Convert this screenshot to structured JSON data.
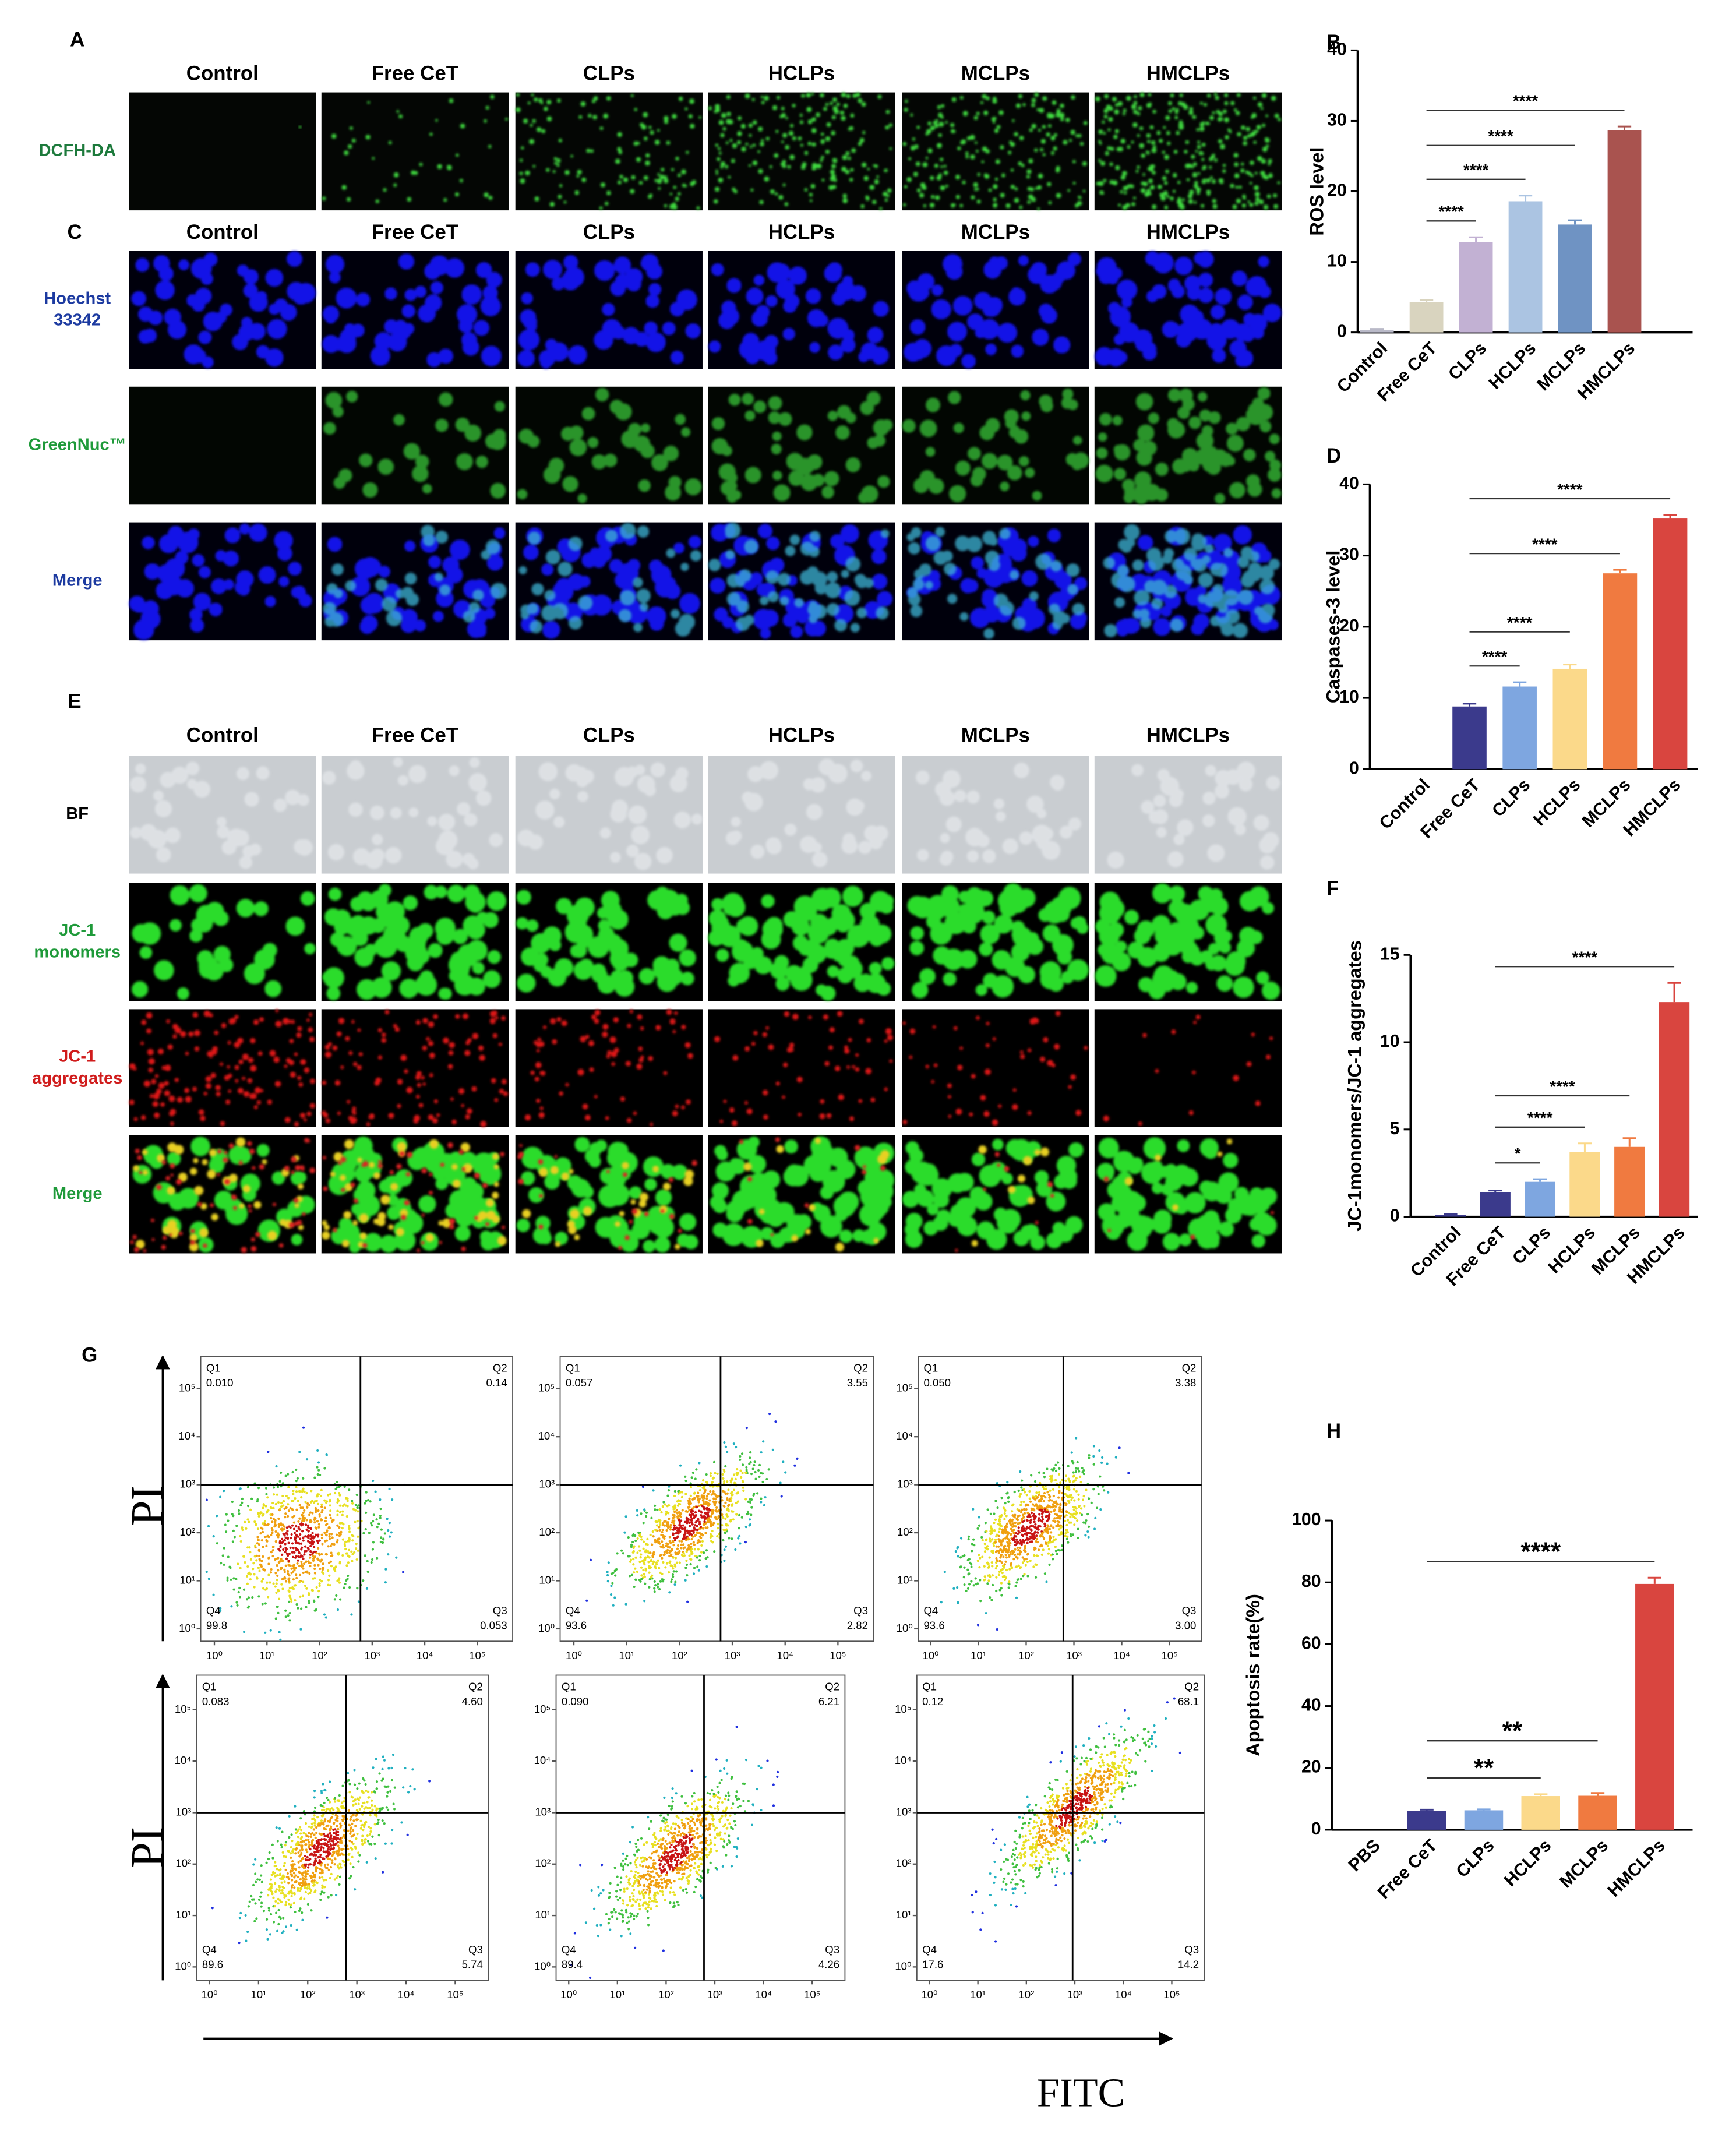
{
  "panels": [
    {
      "letter": "A",
      "columns": [
        "Control",
        "Free CeT",
        "CLPs",
        "HCLPs",
        "MCLPs",
        "HMCLPs"
      ],
      "rows": [
        [
          "DCFH-DA"
        ]
      ]
    },
    {
      "letter": "C",
      "columns": [
        "Control",
        "Free CeT",
        "CLPs",
        "HCLPs",
        "MCLPs",
        "HMCLPs"
      ],
      "rows": [
        [
          "Hoechst",
          "33342"
        ],
        [
          "GreenNuc™"
        ],
        [
          "Merge"
        ]
      ]
    },
    {
      "letter": "E",
      "columns": [
        "Control",
        "Free CeT",
        "CLPs",
        "HCLPs",
        "MCLPs",
        "HMCLPs"
      ],
      "rows": [
        [
          "BF"
        ],
        [
          "JC-1",
          "monomers"
        ],
        [
          "JC-1",
          "aggregates"
        ],
        [
          "Merge"
        ]
      ]
    }
  ],
  "chart_data": [
    {
      "type": "bar",
      "letter": "B",
      "ylabel": "ROS level",
      "categories": [
        "Control",
        "Free CeT",
        "CLPs",
        "HCLPs",
        "MCLPs",
        "HMCLPs"
      ],
      "values": [
        0.3,
        4.3,
        12.8,
        18.6,
        15.3,
        28.7
      ],
      "errors": [
        0.2,
        0.3,
        0.7,
        0.8,
        0.6,
        0.5
      ],
      "colors": [
        "#b9b9c8",
        "#d9d4bf",
        "#c2b1d3",
        "#abc4e2",
        "#6f93c3",
        "#a9534f"
      ],
      "ylim": [
        0,
        40
      ],
      "yticks": [
        0,
        10,
        20,
        30,
        40
      ],
      "comparisons": [
        {
          "between": [
            1,
            2
          ],
          "label": "****"
        },
        {
          "between": [
            1,
            3
          ],
          "label": "****"
        },
        {
          "between": [
            1,
            4
          ],
          "label": "****"
        },
        {
          "between": [
            1,
            5
          ],
          "label": "****"
        }
      ]
    },
    {
      "type": "bar",
      "letter": "D",
      "ylabel": "Caspases-3 level",
      "categories": [
        "Control",
        "Free CeT",
        "CLPs",
        "HCLPs",
        "MCLPs",
        "HMCLPs"
      ],
      "values": [
        0,
        8.8,
        11.6,
        14.1,
        27.5,
        35.2
      ],
      "errors": [
        0,
        0.4,
        0.6,
        0.6,
        0.5,
        0.5
      ],
      "colors": [
        "#3b3a8c",
        "#3b3a8c",
        "#7ea6e0",
        "#fbd98a",
        "#f07a40",
        "#d9453f"
      ],
      "ylim": [
        0,
        40
      ],
      "yticks": [
        0,
        10,
        20,
        30,
        40
      ],
      "comparisons": [
        {
          "between": [
            1,
            2
          ],
          "label": "****"
        },
        {
          "between": [
            1,
            3
          ],
          "label": "****"
        },
        {
          "between": [
            1,
            4
          ],
          "label": "****"
        },
        {
          "between": [
            1,
            5
          ],
          "label": "****"
        }
      ]
    },
    {
      "type": "bar",
      "letter": "F",
      "ylabel": "JC-1monomers/JC-1 aggregates",
      "categories": [
        "Control",
        "Free CeT",
        "CLPs",
        "HCLPs",
        "MCLPs",
        "HMCLPs"
      ],
      "values": [
        0.1,
        1.4,
        2.0,
        3.7,
        4.0,
        12.3
      ],
      "errors": [
        0.05,
        0.1,
        0.15,
        0.5,
        0.5,
        1.1
      ],
      "colors": [
        "#3b3a8c",
        "#3b3a8c",
        "#7ea6e0",
        "#fbd98a",
        "#f07a40",
        "#d9453f"
      ],
      "ylim": [
        0,
        15
      ],
      "yticks": [
        0,
        5,
        10,
        15
      ],
      "comparisons": [
        {
          "between": [
            1,
            2
          ],
          "label": "*"
        },
        {
          "between": [
            1,
            3
          ],
          "label": "****"
        },
        {
          "between": [
            1,
            4
          ],
          "label": "****"
        },
        {
          "between": [
            1,
            5
          ],
          "label": "****"
        }
      ]
    },
    {
      "type": "bar",
      "letter": "H",
      "ylabel": "Apoptosis rate(%)",
      "categories": [
        "PBS",
        "Free CeT",
        "CLPs",
        "HCLPs",
        "MCLPs",
        "HMCLPs"
      ],
      "values": [
        0,
        6.1,
        6.3,
        10.9,
        11.0,
        79.5
      ],
      "errors": [
        0,
        0.4,
        0.3,
        0.6,
        0.9,
        2.0
      ],
      "colors": [
        "#3b3a8c",
        "#3b3a8c",
        "#7ea6e0",
        "#fbd98a",
        "#f07a40",
        "#d9453f"
      ],
      "ylim": [
        0,
        100
      ],
      "yticks": [
        0,
        20,
        40,
        60,
        80,
        100
      ],
      "comparisons": [
        {
          "between": [
            1,
            3
          ],
          "label": "**"
        },
        {
          "between": [
            1,
            4
          ],
          "label": "**"
        },
        {
          "between": [
            1,
            5
          ],
          "label": "****"
        }
      ]
    },
    {
      "type": "flow",
      "letter": "G",
      "ylabel": "PI",
      "xlabel": "FITC",
      "log": true,
      "xlim": [
        0.55,
        470000
      ],
      "ylim": [
        0.55,
        470000
      ],
      "xticks": [
        {
          "value": 1,
          "label": "10⁰"
        },
        {
          "value": 10,
          "label": "10¹"
        },
        {
          "value": 100,
          "label": "10²"
        },
        {
          "value": 1000,
          "label": "10³"
        },
        {
          "value": 10000,
          "label": "10⁴"
        },
        {
          "value": 100000,
          "label": "10⁵"
        }
      ],
      "yticks": [
        {
          "value": 1,
          "label": "10⁰"
        },
        {
          "value": 10,
          "label": "10¹"
        },
        {
          "value": 100,
          "label": "10²"
        },
        {
          "value": 1000,
          "label": "10³"
        },
        {
          "value": 10000,
          "label": "10⁴"
        },
        {
          "value": 100000,
          "label": "10⁵"
        }
      ],
      "plots": [
        {
          "gate": [
            600,
            1000
          ],
          "quadrants": [
            {
              "name": "Q1",
              "value": "0.010"
            },
            {
              "name": "Q2",
              "value": "0.14"
            },
            {
              "name": "Q3",
              "value": "0.053"
            },
            {
              "name": "Q4",
              "value": "99.8"
            }
          ]
        },
        {
          "gate": [
            600,
            1000
          ],
          "quadrants": [
            {
              "name": "Q1",
              "value": "0.057"
            },
            {
              "name": "Q2",
              "value": "3.55"
            },
            {
              "name": "Q3",
              "value": "2.82"
            },
            {
              "name": "Q4",
              "value": "93.6"
            }
          ]
        },
        {
          "gate": [
            600,
            1000
          ],
          "quadrants": [
            {
              "name": "Q1",
              "value": "0.050"
            },
            {
              "name": "Q2",
              "value": "3.38"
            },
            {
              "name": "Q3",
              "value": "3.00"
            },
            {
              "name": "Q4",
              "value": "93.6"
            }
          ]
        },
        {
          "gate": [
            600,
            1000
          ],
          "quadrants": [
            {
              "name": "Q1",
              "value": "0.083"
            },
            {
              "name": "Q2",
              "value": "4.60"
            },
            {
              "name": "Q3",
              "value": "5.74"
            },
            {
              "name": "Q4",
              "value": "89.6"
            }
          ]
        },
        {
          "gate": [
            600,
            1000
          ],
          "quadrants": [
            {
              "name": "Q1",
              "value": "0.090"
            },
            {
              "name": "Q2",
              "value": "6.21"
            },
            {
              "name": "Q3",
              "value": "4.26"
            },
            {
              "name": "Q4",
              "value": "89.4"
            }
          ]
        },
        {
          "gate": [
            900,
            1000
          ],
          "quadrants": [
            {
              "name": "Q1",
              "value": "0.12"
            },
            {
              "name": "Q2",
              "value": "68.1"
            },
            {
              "name": "Q3",
              "value": "14.2"
            },
            {
              "name": "Q4",
              "value": "17.6"
            }
          ]
        }
      ]
    }
  ]
}
